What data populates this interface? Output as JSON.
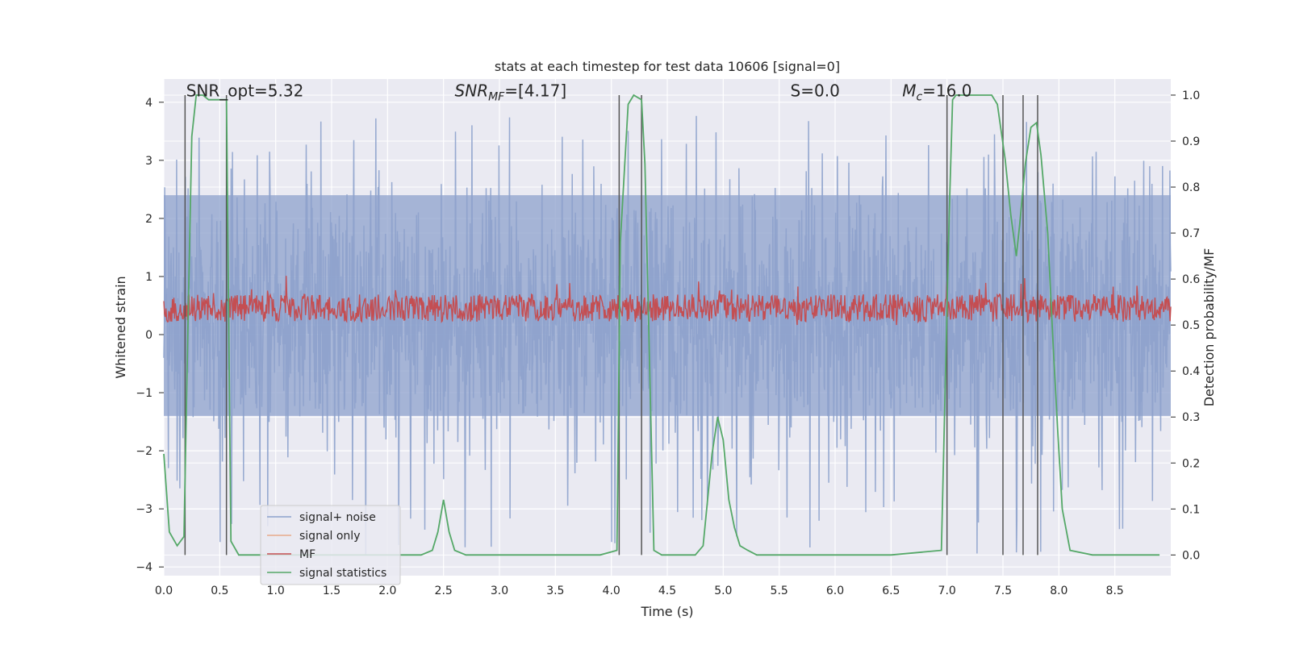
{
  "chart_data": {
    "type": "line",
    "title": "stats at each timestep for test data 10606 [signal=0]",
    "xlabel": "Time (s)",
    "ylabel": "Whitened strain",
    "ylabel_right": "Detection probability/MF",
    "xlim": [
      0.0,
      9.0
    ],
    "ylim": [
      -4.15,
      4.4
    ],
    "ylim_right": [
      -0.045,
      1.035
    ],
    "x_ticks": [
      "0.0",
      "0.5",
      "1.0",
      "1.5",
      "2.0",
      "2.5",
      "3.0",
      "3.5",
      "4.0",
      "4.5",
      "5.0",
      "5.5",
      "6.0",
      "6.5",
      "7.0",
      "7.5",
      "8.0",
      "8.5"
    ],
    "y_ticks": [
      "−4",
      "−3",
      "−2",
      "−1",
      "0",
      "1",
      "2",
      "3",
      "4"
    ],
    "y_ticks_right": [
      "0.0",
      "0.1",
      "0.2",
      "0.3",
      "0.4",
      "0.5",
      "0.6",
      "0.7",
      "0.8",
      "0.9",
      "1.0"
    ],
    "grid": true,
    "legend_position": "lower-left",
    "annotations": [
      {
        "text": "SNR_opt=5.32",
        "x": 0.2,
        "y": 4.1
      },
      {
        "text": "SNR_MF=[4.17]",
        "x": 2.6,
        "y": 4.1
      },
      {
        "text": "S=0.0",
        "x": 5.6,
        "y": 4.1
      },
      {
        "text": "M_c=16.0",
        "x": 6.6,
        "y": 4.1
      }
    ],
    "series": [
      {
        "name": "signal+ noise",
        "color": "#8da2cc",
        "kind": "noise",
        "amplitude_range": [
          -3.9,
          3.9
        ],
        "typical_range": [
          -1.5,
          2.5
        ]
      },
      {
        "name": "signal only",
        "color": "#e8a98a",
        "values": []
      },
      {
        "name": "MF",
        "color": "#c44e52",
        "kind": "noise",
        "axis": "right",
        "typical_range": [
          0.5,
          0.58
        ],
        "max": 0.62
      },
      {
        "name": "signal statistics",
        "color": "#55a868",
        "axis": "right",
        "x": [
          0.0,
          0.05,
          0.12,
          0.18,
          0.22,
          0.25,
          0.29,
          0.32,
          0.35,
          0.4,
          0.45,
          0.5,
          0.56,
          0.6,
          0.67,
          0.75,
          1.0,
          1.5,
          2.0,
          2.3,
          2.4,
          2.45,
          2.5,
          2.55,
          2.6,
          2.7,
          3.0,
          3.5,
          3.9,
          4.05,
          4.08,
          4.15,
          4.2,
          4.27,
          4.3,
          4.38,
          4.45,
          4.6,
          4.75,
          4.82,
          4.9,
          4.95,
          5.0,
          5.05,
          5.1,
          5.15,
          5.22,
          5.3,
          5.5,
          6.0,
          6.5,
          6.95,
          7.02,
          7.05,
          7.08,
          7.2,
          7.4,
          7.45,
          7.52,
          7.57,
          7.62,
          7.65,
          7.7,
          7.75,
          7.8,
          7.84,
          7.9,
          7.95,
          7.99,
          8.03,
          8.1,
          8.3,
          8.6,
          8.9
        ],
        "values": [
          0.22,
          0.05,
          0.02,
          0.04,
          0.55,
          0.91,
          1.0,
          1.0,
          1.0,
          0.99,
          0.99,
          0.99,
          0.99,
          0.03,
          0.0,
          0.0,
          0.0,
          0.0,
          0.0,
          0.0,
          0.01,
          0.05,
          0.12,
          0.05,
          0.01,
          0.0,
          0.0,
          0.0,
          0.0,
          0.01,
          0.68,
          0.98,
          1.0,
          0.99,
          0.85,
          0.01,
          0.0,
          0.0,
          0.0,
          0.02,
          0.22,
          0.3,
          0.25,
          0.12,
          0.06,
          0.02,
          0.01,
          0.0,
          0.0,
          0.0,
          0.0,
          0.01,
          0.74,
          0.99,
          1.0,
          1.0,
          1.0,
          0.98,
          0.86,
          0.74,
          0.65,
          0.72,
          0.85,
          0.93,
          0.94,
          0.87,
          0.7,
          0.45,
          0.27,
          0.1,
          0.01,
          0.0,
          0.0,
          0.0
        ]
      }
    ],
    "vertical_lines_x": [
      0.19,
      0.56,
      4.07,
      4.27,
      7.0,
      7.5,
      7.68,
      7.81
    ]
  }
}
